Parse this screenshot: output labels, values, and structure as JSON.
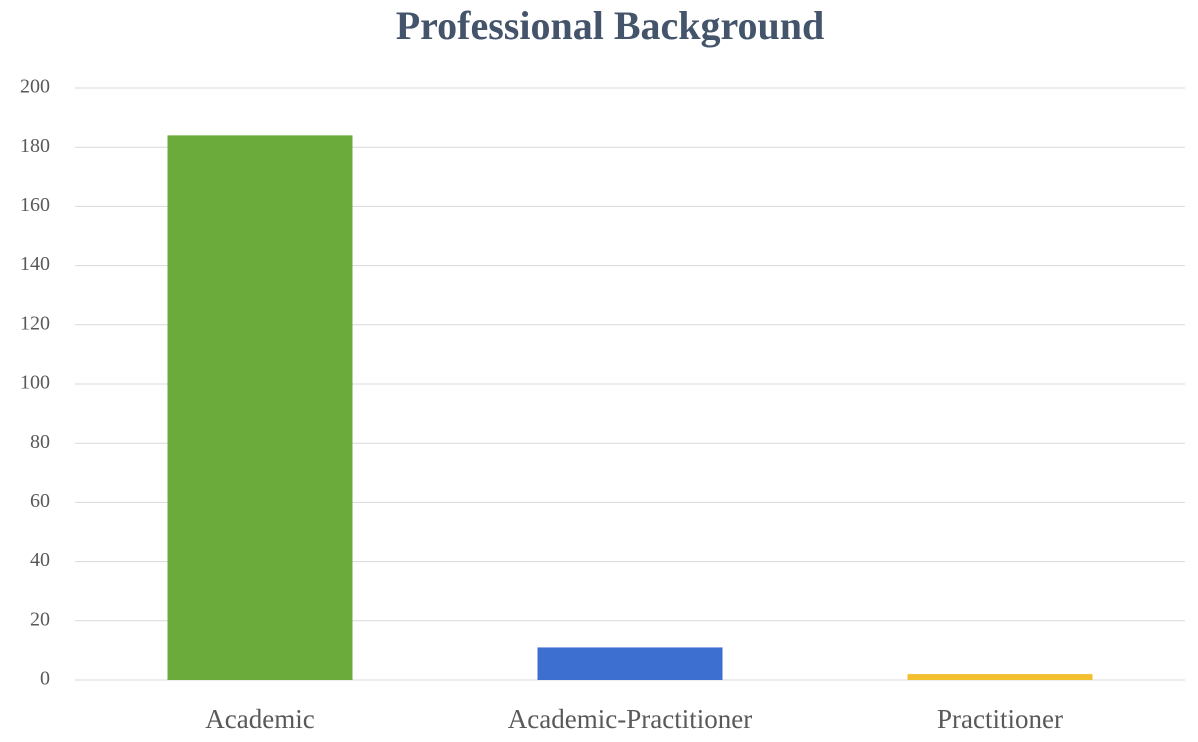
{
  "chart_data": {
    "type": "bar",
    "title": "Professional Background",
    "categories": [
      "Academic",
      "Academic-Practitioner",
      "Practitioner"
    ],
    "values": [
      184,
      11,
      2
    ],
    "colors": [
      "#6aab3c",
      "#3d6fd0",
      "#f4bf2f"
    ],
    "ylim": [
      0,
      200
    ],
    "yticks": [
      0,
      20,
      40,
      60,
      80,
      100,
      120,
      140,
      160,
      180,
      200
    ],
    "grid": true
  }
}
